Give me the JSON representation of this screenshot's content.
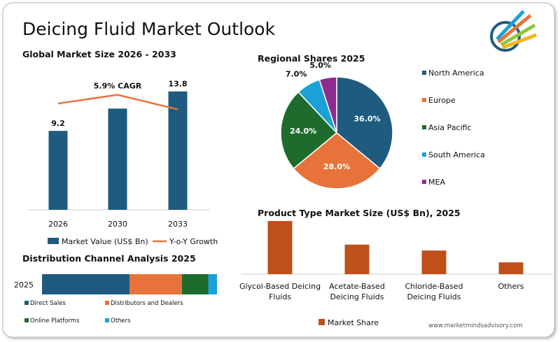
{
  "title": "Deicing Fluid Market Outlook",
  "footer": "www.marketmindsadvisory.com",
  "chart_data": [
    {
      "type": "bar",
      "title": "Global Market Size 2026 - 2033",
      "categories": [
        "2026",
        "2030",
        "2033"
      ],
      "ylim": [
        0,
        15
      ],
      "y2lim": [
        0,
        6.6
      ],
      "series": [
        {
          "name": "Market Value (US$ Bn)",
          "color": "#1f5b7e",
          "values": [
            9.2,
            11.8,
            13.8
          ],
          "value_labels": [
            "9.2",
            null,
            "13.8"
          ]
        },
        {
          "name": "Y-o-Y Growth",
          "type": "line",
          "axis": "y2",
          "color": "#e8733a",
          "values": [
            5.45,
            5.9,
            5.15
          ]
        }
      ],
      "annotation": "5.9% CAGR"
    },
    {
      "type": "pie",
      "title": "Regional Shares 2025",
      "categories": [
        "North America",
        "Europe",
        "Asia Pacific",
        "South America",
        "MEA"
      ],
      "values": [
        36,
        28,
        24,
        7,
        5
      ],
      "value_labels": [
        "36.0%",
        "28.0%",
        "24.0%",
        "7.0%",
        "5.0%"
      ],
      "colors": [
        "#1f5b7e",
        "#e8733a",
        "#1e6b2e",
        "#1aa1d6",
        "#8e2b8e"
      ]
    },
    {
      "type": "stacked-bar",
      "orientation": "horizontal",
      "title": "Distribution Channel Analysis 2025",
      "categories": [
        "2025"
      ],
      "xlim": [
        0,
        100
      ],
      "series": [
        {
          "name": "Direct Sales",
          "color": "#1f5b7e",
          "values": [
            50
          ]
        },
        {
          "name": "Distributors and Dealers",
          "color": "#e8733a",
          "values": [
            30
          ]
        },
        {
          "name": "Online Platforms",
          "color": "#1e6b2e",
          "values": [
            15
          ]
        },
        {
          "name": "Others",
          "color": "#1aa1d6",
          "values": [
            5
          ]
        }
      ]
    },
    {
      "type": "bar",
      "title": "Product Type Market Size (US$ Bn), 2025",
      "categories": [
        "Glycol-Based Deicing Fluids",
        "Acetate-Based Deicing Fluids",
        "Chloride-Based Deicing Fluids",
        "Others"
      ],
      "ylim": [
        0,
        45
      ],
      "series": [
        {
          "name": "Market Share",
          "color": "#c0501a",
          "values": [
            45,
            25,
            20,
            10
          ]
        }
      ]
    }
  ]
}
